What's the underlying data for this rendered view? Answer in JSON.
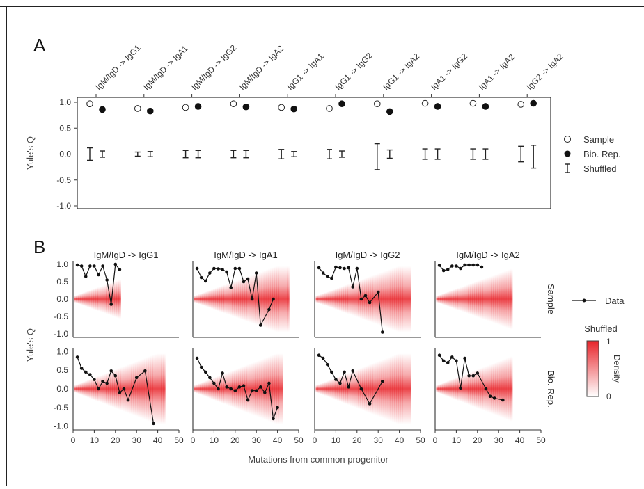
{
  "chart_data": [
    {
      "panel": "A",
      "type": "scatter",
      "ylabel": "Yule's Q",
      "ylim": [
        -1.0,
        1.0
      ],
      "yticks": [
        "1.0",
        "0.5",
        "0.0",
        "-0.5",
        "-1.0"
      ],
      "categories": [
        "IgM/IgD -> IgG1",
        "IgM/IgD -> IgA1",
        "IgM/IgD -> IgG2",
        "IgM/IgD -> IgA2",
        "IgG1 -> IgA1",
        "IgG1 -> IgG2",
        "IgG1 -> IgA2",
        "IgA1 -> IgG2",
        "IgA1 -> IgA2",
        "IgG2 -> IgA2"
      ],
      "legend_position": "right",
      "series": [
        {
          "name": "Sample",
          "marker": "open-circle",
          "values": [
            0.97,
            0.88,
            0.9,
            0.97,
            0.9,
            0.88,
            0.97,
            0.98,
            0.98,
            0.96
          ]
        },
        {
          "name": "Bio. Rep.",
          "marker": "filled-circle",
          "values": [
            0.86,
            0.83,
            0.92,
            0.91,
            0.87,
            0.97,
            0.82,
            0.92,
            0.92,
            0.98
          ]
        },
        {
          "name": "Shuffled",
          "marker": "errorbar",
          "sample_ranges": [
            [
              -0.12,
              0.12
            ],
            [
              -0.04,
              0.04
            ],
            [
              -0.07,
              0.07
            ],
            [
              -0.07,
              0.07
            ],
            [
              -0.09,
              0.09
            ],
            [
              -0.09,
              0.09
            ],
            [
              -0.3,
              0.2
            ],
            [
              -0.1,
              0.1
            ],
            [
              -0.1,
              0.1
            ],
            [
              -0.15,
              0.15
            ]
          ],
          "biorep_ranges": [
            [
              -0.06,
              0.06
            ],
            [
              -0.05,
              0.05
            ],
            [
              -0.07,
              0.07
            ],
            [
              -0.07,
              0.07
            ],
            [
              -0.05,
              0.05
            ],
            [
              -0.06,
              0.06
            ],
            [
              -0.08,
              0.08
            ],
            [
              -0.1,
              0.1
            ],
            [
              -0.1,
              0.1
            ],
            [
              -0.27,
              0.17
            ]
          ]
        }
      ]
    },
    {
      "panel": "B",
      "type": "line",
      "xlabel": "Mutations from common progenitor",
      "ylabel": "Yule's Q",
      "xlim": [
        0,
        50
      ],
      "ylim": [
        -1.1,
        1.1
      ],
      "xticks": [
        "0",
        "10",
        "20",
        "30",
        "40",
        "50"
      ],
      "yticks": [
        "1.0",
        "0.5",
        "0.0",
        "-0.5",
        "-1.0"
      ],
      "columns": [
        "IgM/IgD -> IgG1",
        "IgM/IgD -> IgA1",
        "IgM/IgD -> IgG2",
        "IgM/IgD -> IgA2"
      ],
      "rows": [
        "Sample",
        "Bio. Rep."
      ],
      "legend": {
        "line": "Data",
        "colorbar_title": "Shuffled",
        "colorbar_label": "Density",
        "colorbar_ticks": [
          "1",
          "0"
        ]
      },
      "colors": {
        "density": "#e8242a",
        "data": "#111111"
      },
      "panels": [
        {
          "row": "Sample",
          "column": "IgM/IgD -> IgG1",
          "density_xmax": 22,
          "x": [
            2,
            4,
            6,
            8,
            10,
            12,
            14,
            16,
            18,
            20,
            22
          ],
          "y": [
            0.98,
            0.95,
            0.65,
            0.95,
            0.95,
            0.7,
            0.95,
            0.55,
            -0.15,
            1.0,
            0.85
          ]
        },
        {
          "row": "Sample",
          "column": "IgM/IgD -> IgA1",
          "density_xmax": 45,
          "x": [
            2,
            4,
            6,
            8,
            10,
            12,
            14,
            16,
            18,
            20,
            22,
            24,
            26,
            28,
            30,
            32,
            36,
            38
          ],
          "y": [
            0.88,
            0.62,
            0.52,
            0.75,
            0.88,
            0.87,
            0.85,
            0.78,
            0.33,
            0.88,
            0.88,
            0.5,
            0.58,
            0.0,
            0.75,
            -0.75,
            -0.3,
            0.0
          ]
        },
        {
          "row": "Sample",
          "column": "IgM/IgD -> IgG2",
          "density_xmax": 45,
          "x": [
            2,
            4,
            6,
            8,
            10,
            12,
            14,
            16,
            18,
            20,
            22,
            24,
            26,
            30,
            32
          ],
          "y": [
            0.9,
            0.75,
            0.65,
            0.6,
            0.92,
            0.9,
            0.88,
            0.9,
            0.35,
            0.88,
            0.0,
            0.1,
            -0.1,
            0.2,
            -0.95
          ]
        },
        {
          "row": "Sample",
          "column": "IgM/IgD -> IgA2",
          "density_xmax": 36,
          "x": [
            2,
            4,
            6,
            8,
            10,
            12,
            14,
            16,
            18,
            20,
            22
          ],
          "y": [
            0.97,
            0.82,
            0.85,
            0.95,
            0.95,
            0.88,
            0.98,
            0.98,
            0.98,
            0.98,
            0.92
          ]
        },
        {
          "row": "Bio. Rep.",
          "column": "IgM/IgD -> IgG1",
          "density_xmax": 43,
          "x": [
            2,
            4,
            6,
            8,
            10,
            12,
            14,
            16,
            18,
            20,
            22,
            24,
            26,
            30,
            34,
            38
          ],
          "y": [
            0.85,
            0.55,
            0.45,
            0.38,
            0.25,
            0.0,
            0.2,
            0.15,
            0.48,
            0.35,
            -0.1,
            0.0,
            -0.3,
            0.3,
            0.48,
            -0.93
          ]
        },
        {
          "row": "Bio. Rep.",
          "column": "IgM/IgD -> IgA1",
          "density_xmax": 42,
          "x": [
            2,
            4,
            6,
            8,
            10,
            12,
            14,
            16,
            18,
            20,
            22,
            24,
            26,
            28,
            30,
            32,
            34,
            36,
            38,
            40
          ],
          "y": [
            0.82,
            0.58,
            0.45,
            0.3,
            0.15,
            0.0,
            0.42,
            0.05,
            0.0,
            -0.05,
            0.05,
            0.08,
            -0.3,
            -0.05,
            -0.05,
            0.05,
            -0.1,
            0.15,
            -0.8,
            -0.5
          ]
        },
        {
          "row": "Bio. Rep.",
          "column": "IgM/IgD -> IgG2",
          "density_xmax": 45,
          "x": [
            2,
            4,
            6,
            8,
            10,
            12,
            14,
            16,
            18,
            22,
            26,
            32
          ],
          "y": [
            0.9,
            0.82,
            0.65,
            0.45,
            0.25,
            0.15,
            0.45,
            0.05,
            0.48,
            0.0,
            -0.4,
            0.2
          ]
        },
        {
          "row": "Bio. Rep.",
          "column": "IgM/IgD -> IgA2",
          "density_xmax": 36,
          "x": [
            2,
            4,
            6,
            8,
            10,
            12,
            14,
            16,
            18,
            20,
            24,
            26,
            28,
            32
          ],
          "y": [
            0.9,
            0.75,
            0.7,
            0.85,
            0.75,
            0.02,
            0.82,
            0.35,
            0.35,
            0.42,
            0.0,
            -0.2,
            -0.25,
            -0.3
          ]
        }
      ]
    }
  ]
}
